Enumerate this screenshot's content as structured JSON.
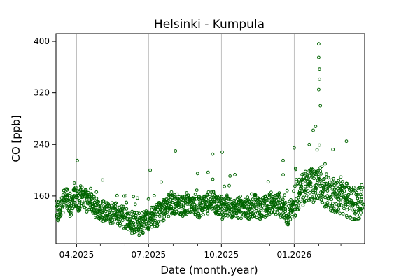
{
  "chart_data": {
    "type": "scatter",
    "title": "Helsinki - Kumpula",
    "xlabel": "Date (month.year)",
    "ylabel": "CO [ppb]",
    "xlim": [
      "2025-03-06",
      "2026-03-31"
    ],
    "ylim": [
      86,
      412
    ],
    "x_ticks": [
      {
        "date": "2025-04-01",
        "label": "04.2025"
      },
      {
        "date": "2025-07-01",
        "label": "07.2025"
      },
      {
        "date": "2025-10-01",
        "label": "10.2025"
      },
      {
        "date": "2026-01-01",
        "label": "01.2026"
      }
    ],
    "x_minor_ticks": [
      "2025-05-01",
      "2025-06-01",
      "2025-08-01",
      "2025-09-01",
      "2025-11-01",
      "2025-12-01",
      "2026-02-01",
      "2026-03-01"
    ],
    "y_ticks": [
      160,
      240,
      320,
      400
    ],
    "grid": "vertical lines at major x ticks",
    "marker": "open circle",
    "colors": {
      "marker_edge": "#006400",
      "grid": "#b0b0b0"
    },
    "series": [
      {
        "values": [
          [
            "2025-03-10",
            138
          ],
          [
            "2025-03-15",
            150
          ],
          [
            "2025-03-20",
            158
          ],
          [
            "2025-03-25",
            145
          ],
          [
            "2025-03-30",
            160
          ],
          [
            "2025-04-05",
            150
          ],
          [
            "2025-04-10",
            162
          ],
          [
            "2025-04-15",
            148
          ],
          [
            "2025-04-20",
            155
          ],
          [
            "2025-04-25",
            142
          ],
          [
            "2025-05-01",
            140
          ],
          [
            "2025-05-08",
            136
          ],
          [
            "2025-05-15",
            134
          ],
          [
            "2025-05-22",
            132
          ],
          [
            "2025-05-29",
            128
          ],
          [
            "2025-06-05",
            124
          ],
          [
            "2025-06-12",
            118
          ],
          [
            "2025-06-19",
            116
          ],
          [
            "2025-06-26",
            120
          ],
          [
            "2025-07-03",
            125
          ],
          [
            "2025-07-10",
            128
          ],
          [
            "2025-07-17",
            135
          ],
          [
            "2025-07-24",
            142
          ],
          [
            "2025-07-31",
            150
          ],
          [
            "2025-08-07",
            148
          ],
          [
            "2025-08-14",
            145
          ],
          [
            "2025-08-21",
            150
          ],
          [
            "2025-08-28",
            147
          ],
          [
            "2025-09-04",
            142
          ],
          [
            "2025-09-11",
            145
          ],
          [
            "2025-09-18",
            152
          ],
          [
            "2025-09-25",
            148
          ],
          [
            "2025-10-02",
            140
          ],
          [
            "2025-10-09",
            145
          ],
          [
            "2025-10-16",
            142
          ],
          [
            "2025-10-23",
            140
          ],
          [
            "2025-10-30",
            144
          ],
          [
            "2025-11-06",
            140
          ],
          [
            "2025-11-13",
            146
          ],
          [
            "2025-11-20",
            138
          ],
          [
            "2025-11-27",
            145
          ],
          [
            "2025-12-04",
            150
          ],
          [
            "2025-12-11",
            148
          ],
          [
            "2025-12-18",
            140
          ],
          [
            "2025-12-25",
            130
          ],
          [
            "2026-01-01",
            152
          ],
          [
            "2026-01-08",
            165
          ],
          [
            "2026-01-15",
            175
          ],
          [
            "2026-01-22",
            180
          ],
          [
            "2026-01-29",
            172
          ],
          [
            "2026-02-05",
            176
          ],
          [
            "2026-02-12",
            168
          ],
          [
            "2026-02-19",
            162
          ],
          [
            "2026-02-26",
            156
          ],
          [
            "2026-03-05",
            158
          ],
          [
            "2026-03-12",
            150
          ],
          [
            "2026-03-19",
            148
          ],
          [
            "2026-03-26",
            152
          ],
          [
            "2026-02-01",
            325
          ],
          [
            "2026-02-02",
            341
          ],
          [
            "2026-02-02",
            357
          ],
          [
            "2026-02-01",
            375
          ],
          [
            "2026-02-01",
            396
          ],
          [
            "2026-02-03",
            300
          ],
          [
            "2026-01-28",
            268
          ],
          [
            "2026-01-25",
            262
          ],
          [
            "2026-01-20",
            240
          ],
          [
            "2025-04-02",
            215
          ],
          [
            "2025-07-03",
            200
          ],
          [
            "2025-08-04",
            230
          ],
          [
            "2025-09-20",
            225
          ],
          [
            "2025-10-02",
            228
          ],
          [
            "2025-12-18",
            215
          ],
          [
            "2026-03-08",
            245
          ],
          [
            "2025-06-10",
            102
          ]
        ]
      }
    ]
  }
}
